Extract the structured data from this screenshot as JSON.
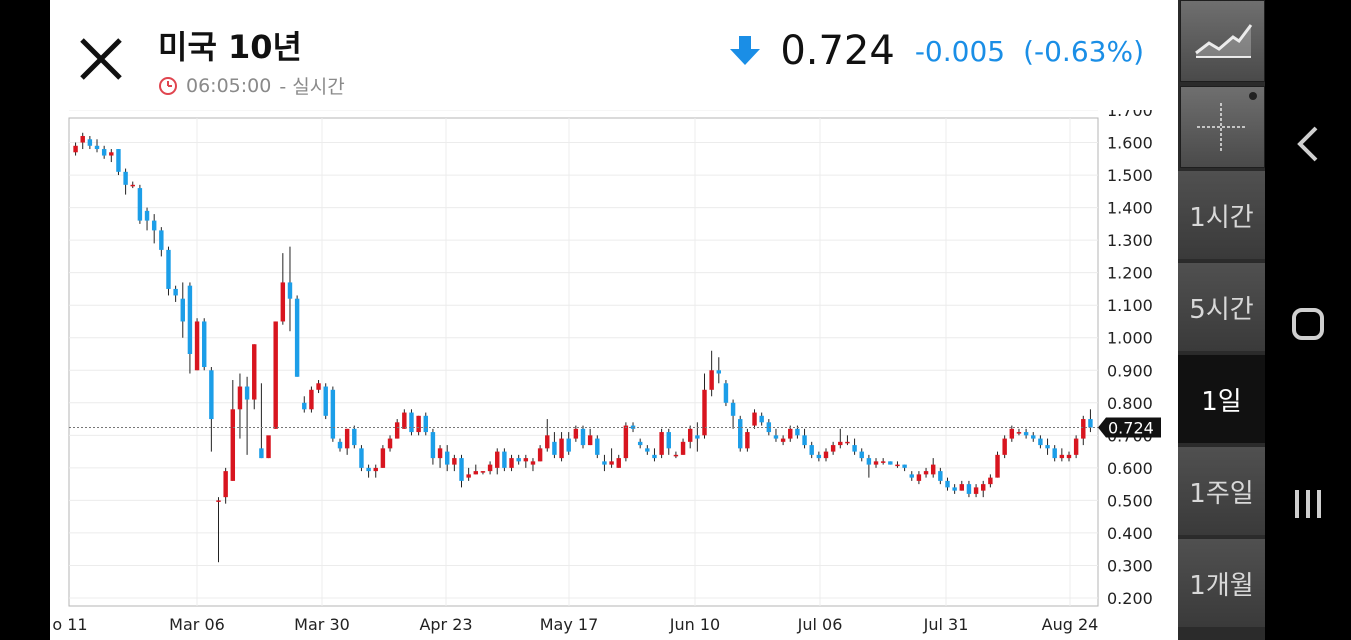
{
  "header": {
    "title": "미국 10년",
    "time": "06:05:00",
    "time_suffix": "- 실시간",
    "price": "0.724",
    "change": "-0.005",
    "change_pct": "(-0.63%)",
    "down_color": "#1a8ee6"
  },
  "periods": [
    {
      "label": "1시간",
      "active": false
    },
    {
      "label": "5시간",
      "active": false
    },
    {
      "label": "1일",
      "active": true
    },
    {
      "label": "1주일",
      "active": false
    },
    {
      "label": "1개월",
      "active": false
    }
  ],
  "tools": [
    {
      "icon": "line-chart-icon"
    },
    {
      "icon": "crosshair-icon"
    }
  ],
  "nav": [
    "back-icon",
    "home-icon",
    "recent-apps-icon"
  ],
  "chart_data": {
    "type": "candlestick",
    "ylim": [
      0.2,
      1.7
    ],
    "y_ticks": [
      "1.700",
      "1.600",
      "1.500",
      "1.400",
      "1.300",
      "1.200",
      "1.100",
      "1.000",
      "0.900",
      "0.800",
      "0.700",
      "0.600",
      "0.500",
      "0.400",
      "0.300",
      "0.200"
    ],
    "x_ticks": [
      "o 11",
      "Mar 06",
      "Mar 30",
      "Apr 23",
      "May 17",
      "Jun 10",
      "Jul 06",
      "Jul 31",
      "Aug 24"
    ],
    "current_value": 0.724,
    "current_label": "0.724",
    "up_color": "#d8151f",
    "down_color": "#1c9ee8",
    "candles": [
      [
        1.57,
        1.6,
        1.56,
        1.59
      ],
      [
        1.6,
        1.63,
        1.58,
        1.62
      ],
      [
        1.61,
        1.62,
        1.58,
        1.59
      ],
      [
        1.59,
        1.61,
        1.57,
        1.58
      ],
      [
        1.58,
        1.59,
        1.55,
        1.56
      ],
      [
        1.56,
        1.58,
        1.54,
        1.57
      ],
      [
        1.58,
        1.58,
        1.5,
        1.51
      ],
      [
        1.51,
        1.52,
        1.44,
        1.47
      ],
      [
        1.47,
        1.48,
        1.46,
        1.47
      ],
      [
        1.46,
        1.47,
        1.35,
        1.36
      ],
      [
        1.39,
        1.4,
        1.33,
        1.36
      ],
      [
        1.36,
        1.38,
        1.29,
        1.33
      ],
      [
        1.33,
        1.34,
        1.25,
        1.27
      ],
      [
        1.27,
        1.28,
        1.13,
        1.15
      ],
      [
        1.15,
        1.16,
        1.11,
        1.13
      ],
      [
        1.12,
        1.17,
        1.0,
        1.05
      ],
      [
        1.16,
        1.17,
        0.89,
        0.95
      ],
      [
        0.9,
        1.06,
        0.9,
        1.05
      ],
      [
        1.05,
        1.06,
        0.9,
        0.91
      ],
      [
        0.9,
        0.91,
        0.65,
        0.75
      ],
      [
        0.5,
        0.51,
        0.31,
        0.5
      ],
      [
        0.51,
        0.6,
        0.49,
        0.59
      ],
      [
        0.56,
        0.87,
        0.56,
        0.78
      ],
      [
        0.78,
        0.89,
        0.69,
        0.85
      ],
      [
        0.85,
        0.88,
        0.64,
        0.81
      ],
      [
        0.81,
        0.98,
        0.78,
        0.98
      ],
      [
        0.66,
        0.86,
        0.63,
        0.63
      ],
      [
        0.63,
        0.69,
        0.63,
        0.7
      ],
      [
        0.72,
        1.05,
        0.72,
        1.05
      ],
      [
        1.05,
        1.26,
        1.04,
        1.17
      ],
      [
        1.17,
        1.28,
        1.02,
        1.12
      ],
      [
        1.12,
        1.13,
        0.88,
        0.88
      ],
      [
        0.8,
        0.82,
        0.77,
        0.78
      ],
      [
        0.78,
        0.85,
        0.77,
        0.84
      ],
      [
        0.84,
        0.87,
        0.83,
        0.86
      ],
      [
        0.85,
        0.86,
        0.75,
        0.76
      ],
      [
        0.84,
        0.85,
        0.68,
        0.69
      ],
      [
        0.68,
        0.69,
        0.65,
        0.66
      ],
      [
        0.66,
        0.72,
        0.64,
        0.72
      ],
      [
        0.72,
        0.73,
        0.66,
        0.67
      ],
      [
        0.66,
        0.67,
        0.59,
        0.6
      ],
      [
        0.6,
        0.61,
        0.57,
        0.59
      ],
      [
        0.59,
        0.61,
        0.57,
        0.6
      ],
      [
        0.6,
        0.67,
        0.6,
        0.66
      ],
      [
        0.66,
        0.7,
        0.65,
        0.69
      ],
      [
        0.69,
        0.75,
        0.69,
        0.74
      ],
      [
        0.72,
        0.78,
        0.72,
        0.77
      ],
      [
        0.77,
        0.78,
        0.7,
        0.71
      ],
      [
        0.71,
        0.76,
        0.7,
        0.76
      ],
      [
        0.76,
        0.77,
        0.7,
        0.71
      ],
      [
        0.71,
        0.72,
        0.61,
        0.63
      ],
      [
        0.63,
        0.67,
        0.6,
        0.66
      ],
      [
        0.65,
        0.67,
        0.59,
        0.61
      ],
      [
        0.61,
        0.64,
        0.59,
        0.63
      ],
      [
        0.63,
        0.64,
        0.54,
        0.56
      ],
      [
        0.57,
        0.6,
        0.56,
        0.58
      ],
      [
        0.58,
        0.61,
        0.58,
        0.59
      ],
      [
        0.59,
        0.59,
        0.58,
        0.59
      ],
      [
        0.59,
        0.62,
        0.58,
        0.61
      ],
      [
        0.6,
        0.66,
        0.58,
        0.65
      ],
      [
        0.65,
        0.66,
        0.59,
        0.6
      ],
      [
        0.6,
        0.64,
        0.59,
        0.63
      ],
      [
        0.63,
        0.64,
        0.61,
        0.62
      ],
      [
        0.62,
        0.64,
        0.6,
        0.63
      ],
      [
        0.61,
        0.63,
        0.59,
        0.62
      ],
      [
        0.62,
        0.67,
        0.62,
        0.66
      ],
      [
        0.66,
        0.75,
        0.65,
        0.7
      ],
      [
        0.68,
        0.71,
        0.63,
        0.64
      ],
      [
        0.63,
        0.71,
        0.62,
        0.69
      ],
      [
        0.69,
        0.71,
        0.64,
        0.65
      ],
      [
        0.69,
        0.73,
        0.68,
        0.72
      ],
      [
        0.72,
        0.73,
        0.66,
        0.67
      ],
      [
        0.67,
        0.72,
        0.67,
        0.7
      ],
      [
        0.69,
        0.7,
        0.63,
        0.64
      ],
      [
        0.62,
        0.64,
        0.59,
        0.61
      ],
      [
        0.61,
        0.66,
        0.6,
        0.62
      ],
      [
        0.6,
        0.64,
        0.6,
        0.63
      ],
      [
        0.63,
        0.74,
        0.62,
        0.73
      ],
      [
        0.73,
        0.74,
        0.71,
        0.72
      ],
      [
        0.68,
        0.69,
        0.66,
        0.67
      ],
      [
        0.66,
        0.67,
        0.64,
        0.65
      ],
      [
        0.64,
        0.66,
        0.62,
        0.63
      ],
      [
        0.64,
        0.72,
        0.63,
        0.71
      ],
      [
        0.71,
        0.72,
        0.64,
        0.66
      ],
      [
        0.64,
        0.65,
        0.63,
        0.64
      ],
      [
        0.64,
        0.69,
        0.64,
        0.68
      ],
      [
        0.68,
        0.73,
        0.66,
        0.72
      ],
      [
        0.7,
        0.74,
        0.65,
        0.69
      ],
      [
        0.7,
        0.89,
        0.69,
        0.84
      ],
      [
        0.84,
        0.96,
        0.82,
        0.9
      ],
      [
        0.9,
        0.94,
        0.86,
        0.89
      ],
      [
        0.86,
        0.87,
        0.79,
        0.8
      ],
      [
        0.8,
        0.81,
        0.72,
        0.76
      ],
      [
        0.75,
        0.76,
        0.65,
        0.66
      ],
      [
        0.66,
        0.72,
        0.65,
        0.71
      ],
      [
        0.73,
        0.78,
        0.72,
        0.77
      ],
      [
        0.76,
        0.77,
        0.73,
        0.74
      ],
      [
        0.74,
        0.75,
        0.7,
        0.71
      ],
      [
        0.7,
        0.72,
        0.68,
        0.69
      ],
      [
        0.68,
        0.7,
        0.67,
        0.69
      ],
      [
        0.69,
        0.73,
        0.68,
        0.72
      ],
      [
        0.72,
        0.73,
        0.69,
        0.7
      ],
      [
        0.7,
        0.72,
        0.66,
        0.67
      ],
      [
        0.67,
        0.68,
        0.63,
        0.64
      ],
      [
        0.64,
        0.65,
        0.62,
        0.63
      ],
      [
        0.63,
        0.66,
        0.62,
        0.65
      ],
      [
        0.65,
        0.68,
        0.64,
        0.67
      ],
      [
        0.67,
        0.72,
        0.66,
        0.68
      ],
      [
        0.68,
        0.7,
        0.67,
        0.68
      ],
      [
        0.67,
        0.69,
        0.64,
        0.65
      ],
      [
        0.65,
        0.66,
        0.62,
        0.63
      ],
      [
        0.63,
        0.64,
        0.57,
        0.61
      ],
      [
        0.61,
        0.63,
        0.6,
        0.62
      ],
      [
        0.62,
        0.63,
        0.61,
        0.62
      ],
      [
        0.62,
        0.62,
        0.61,
        0.61
      ],
      [
        0.61,
        0.62,
        0.6,
        0.61
      ],
      [
        0.61,
        0.61,
        0.59,
        0.6
      ],
      [
        0.58,
        0.59,
        0.56,
        0.57
      ],
      [
        0.56,
        0.59,
        0.55,
        0.58
      ],
      [
        0.58,
        0.6,
        0.57,
        0.59
      ],
      [
        0.58,
        0.63,
        0.57,
        0.61
      ],
      [
        0.59,
        0.6,
        0.55,
        0.56
      ],
      [
        0.56,
        0.57,
        0.53,
        0.54
      ],
      [
        0.54,
        0.55,
        0.52,
        0.53
      ],
      [
        0.53,
        0.56,
        0.53,
        0.55
      ],
      [
        0.55,
        0.56,
        0.51,
        0.52
      ],
      [
        0.52,
        0.55,
        0.51,
        0.54
      ],
      [
        0.53,
        0.56,
        0.51,
        0.55
      ],
      [
        0.55,
        0.58,
        0.54,
        0.57
      ],
      [
        0.57,
        0.65,
        0.57,
        0.64
      ],
      [
        0.64,
        0.7,
        0.63,
        0.69
      ],
      [
        0.69,
        0.73,
        0.68,
        0.72
      ],
      [
        0.71,
        0.72,
        0.7,
        0.71
      ],
      [
        0.71,
        0.72,
        0.69,
        0.7
      ],
      [
        0.7,
        0.71,
        0.68,
        0.69
      ],
      [
        0.69,
        0.7,
        0.66,
        0.67
      ],
      [
        0.67,
        0.69,
        0.64,
        0.66
      ],
      [
        0.66,
        0.67,
        0.62,
        0.63
      ],
      [
        0.63,
        0.66,
        0.62,
        0.64
      ],
      [
        0.63,
        0.65,
        0.62,
        0.64
      ],
      [
        0.64,
        0.7,
        0.63,
        0.69
      ],
      [
        0.69,
        0.76,
        0.67,
        0.75
      ],
      [
        0.75,
        0.78,
        0.71,
        0.724
      ]
    ]
  }
}
